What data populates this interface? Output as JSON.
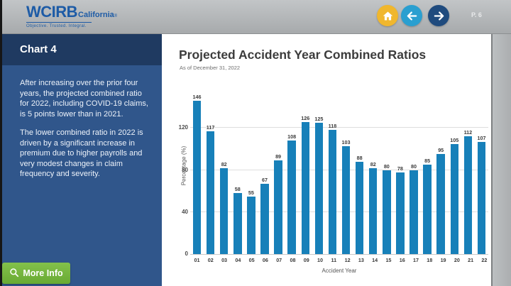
{
  "header": {
    "logo": {
      "brand": "WCIRB",
      "region": "California",
      "trademark": "®",
      "tagline": "Objective. Trusted. Integral."
    },
    "nav": {
      "page_label": "P. 6"
    }
  },
  "sidebar": {
    "title": "Chart 4",
    "paragraphs": [
      "After increasing over the prior four years, the projected combined ratio for 2022, including COVID-19 claims, is 5 points lower than in 2021.",
      "The lower combined ratio in 2022 is driven by a significant increase in premium due to higher payrolls and very modest changes in claim frequency and severity."
    ],
    "more_info_label": "More Info"
  },
  "main": {
    "title": "Projected Accident Year Combined Ratios",
    "subtitle": "As of December 31, 2022"
  },
  "chart_data": {
    "type": "bar",
    "title": "Projected Accident Year Combined Ratios",
    "subtitle": "As of December 31, 2022",
    "categories": [
      "01",
      "02",
      "03",
      "04",
      "05",
      "06",
      "07",
      "08",
      "09",
      "10",
      "11",
      "12",
      "13",
      "14",
      "15",
      "16",
      "17",
      "18",
      "19",
      "20",
      "21",
      "22"
    ],
    "values": [
      146,
      117,
      82,
      58,
      55,
      67,
      89,
      108,
      126,
      125,
      118,
      103,
      88,
      82,
      80,
      78,
      80,
      85,
      95,
      105,
      112,
      107
    ],
    "xlabel": "Accident Year",
    "ylabel": "Percentage (%)",
    "yticks": [
      0,
      40,
      80,
      120
    ],
    "ylim": [
      0,
      150
    ],
    "grid": true,
    "legend": "none",
    "bar_color": "#1780b9"
  },
  "colors": {
    "header_bg": "#b3b6b8",
    "logo_blue": "#1d5ba6",
    "home_button": "#f0b72e",
    "prev_button": "#2a9fd0",
    "next_button": "#1f4b7e",
    "sidebar_dark": "#1f3a61",
    "sidebar_body": "#30568b",
    "more_info_green": "#72b33c",
    "bar_blue": "#1780b9"
  }
}
